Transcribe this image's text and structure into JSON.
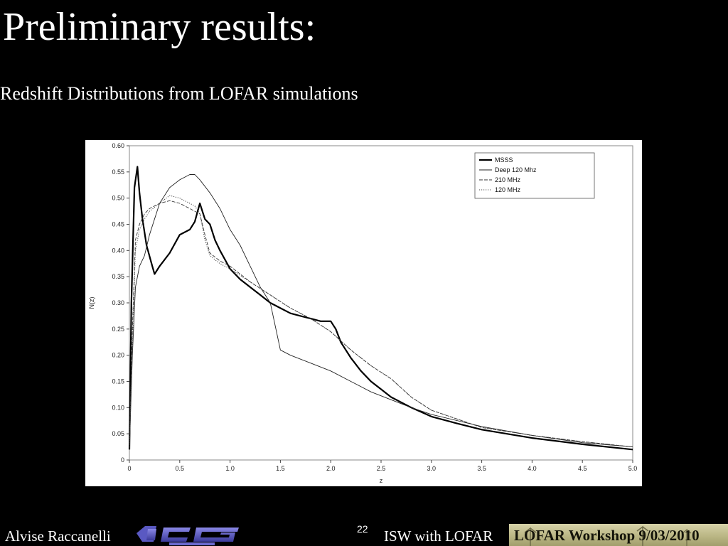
{
  "slide": {
    "title": "Preliminary results:",
    "subtitle": "Redshift Distributions from LOFAR simulations",
    "page_number": "22",
    "footer_author": "Alvise Raccanelli",
    "footer_logo": "ICG Portsmouth",
    "footer_talk": "ISW with LOFAR",
    "footer_workshop": "LOFAR Workshop 9/03/2010"
  },
  "chart_data": {
    "type": "line",
    "xlabel": "z",
    "ylabel": "N(z)",
    "xlim": [
      0,
      5
    ],
    "ylim": [
      0,
      0.6
    ],
    "xticks": [
      "0",
      "0.5",
      "1.0",
      "1.5",
      "2.0",
      "2.5",
      "3.0",
      "3.5",
      "4.0",
      "4.5",
      "5.0"
    ],
    "yticks": [
      "0",
      "0.05",
      "0.10",
      "0.15",
      "0.20",
      "0.25",
      "0.30",
      "0.35",
      "0.40",
      "0.45",
      "0.50",
      "0.55",
      "0.60"
    ],
    "legend_position": "top-right",
    "series": [
      {
        "name": "MSSS",
        "style": "solid-thick",
        "x": [
          0,
          0.02,
          0.05,
          0.08,
          0.1,
          0.13,
          0.17,
          0.22,
          0.25,
          0.3,
          0.4,
          0.5,
          0.6,
          0.65,
          0.7,
          0.75,
          0.8,
          0.85,
          0.9,
          1.0,
          1.1,
          1.2,
          1.3,
          1.4,
          1.5,
          1.6,
          1.7,
          1.8,
          1.9,
          2.0,
          2.05,
          2.1,
          2.2,
          2.3,
          2.4,
          2.5,
          2.6,
          2.8,
          3.0,
          3.25,
          3.5,
          3.75,
          4.0,
          4.5,
          5.0
        ],
        "y": [
          0.02,
          0.3,
          0.52,
          0.56,
          0.51,
          0.46,
          0.41,
          0.375,
          0.355,
          0.37,
          0.395,
          0.43,
          0.44,
          0.455,
          0.49,
          0.46,
          0.45,
          0.42,
          0.4,
          0.365,
          0.345,
          0.33,
          0.315,
          0.3,
          0.29,
          0.28,
          0.275,
          0.27,
          0.265,
          0.265,
          0.25,
          0.225,
          0.195,
          0.17,
          0.15,
          0.135,
          0.12,
          0.1,
          0.083,
          0.07,
          0.058,
          0.05,
          0.042,
          0.03,
          0.02
        ]
      },
      {
        "name": "Deep 120 Mhz",
        "style": "solid-thin",
        "x": [
          0,
          0.03,
          0.06,
          0.1,
          0.15,
          0.2,
          0.3,
          0.4,
          0.5,
          0.6,
          0.65,
          0.7,
          0.8,
          0.9,
          1.0,
          1.1,
          1.2,
          1.3,
          1.4,
          1.45,
          1.5,
          1.6,
          1.8,
          2.0,
          2.2,
          2.4,
          2.6,
          2.8,
          3.0,
          3.5,
          4.0,
          4.5,
          5.0
        ],
        "y": [
          0.02,
          0.2,
          0.33,
          0.37,
          0.39,
          0.43,
          0.49,
          0.52,
          0.535,
          0.545,
          0.545,
          0.535,
          0.51,
          0.48,
          0.44,
          0.41,
          0.37,
          0.33,
          0.3,
          0.255,
          0.21,
          0.2,
          0.185,
          0.17,
          0.15,
          0.13,
          0.115,
          0.1,
          0.087,
          0.064,
          0.047,
          0.033,
          0.025
        ]
      },
      {
        "name": "210 MHz",
        "style": "dashed",
        "x": [
          0,
          0.03,
          0.06,
          0.1,
          0.15,
          0.2,
          0.3,
          0.4,
          0.5,
          0.6,
          0.65,
          0.7,
          0.75,
          0.8,
          0.9,
          1.0,
          1.2,
          1.4,
          1.6,
          1.8,
          2.0,
          2.2,
          2.4,
          2.6,
          2.8,
          3.0,
          3.5,
          4.0,
          4.5,
          5.0
        ],
        "y": [
          0.02,
          0.25,
          0.42,
          0.45,
          0.47,
          0.48,
          0.49,
          0.495,
          0.49,
          0.48,
          0.475,
          0.47,
          0.43,
          0.395,
          0.38,
          0.37,
          0.34,
          0.315,
          0.29,
          0.27,
          0.245,
          0.21,
          0.18,
          0.155,
          0.12,
          0.095,
          0.062,
          0.047,
          0.035,
          0.025
        ]
      },
      {
        "name": "120 MHz",
        "style": "dotted",
        "x": [
          0,
          0.03,
          0.06,
          0.1,
          0.15,
          0.2,
          0.3,
          0.4,
          0.5,
          0.6,
          0.65,
          0.7,
          0.75,
          0.8,
          0.9,
          1.0,
          1.2,
          1.4,
          1.6,
          1.8,
          2.0,
          2.2,
          2.4,
          2.6,
          2.8,
          3.0,
          3.5,
          4.0,
          4.5,
          5.0
        ],
        "y": [
          0.02,
          0.22,
          0.4,
          0.44,
          0.46,
          0.475,
          0.49,
          0.505,
          0.5,
          0.49,
          0.485,
          0.47,
          0.42,
          0.39,
          0.375,
          0.365,
          0.34,
          0.315,
          0.29,
          0.27,
          0.245,
          0.21,
          0.18,
          0.155,
          0.12,
          0.095,
          0.062,
          0.047,
          0.035,
          0.025
        ]
      }
    ]
  }
}
